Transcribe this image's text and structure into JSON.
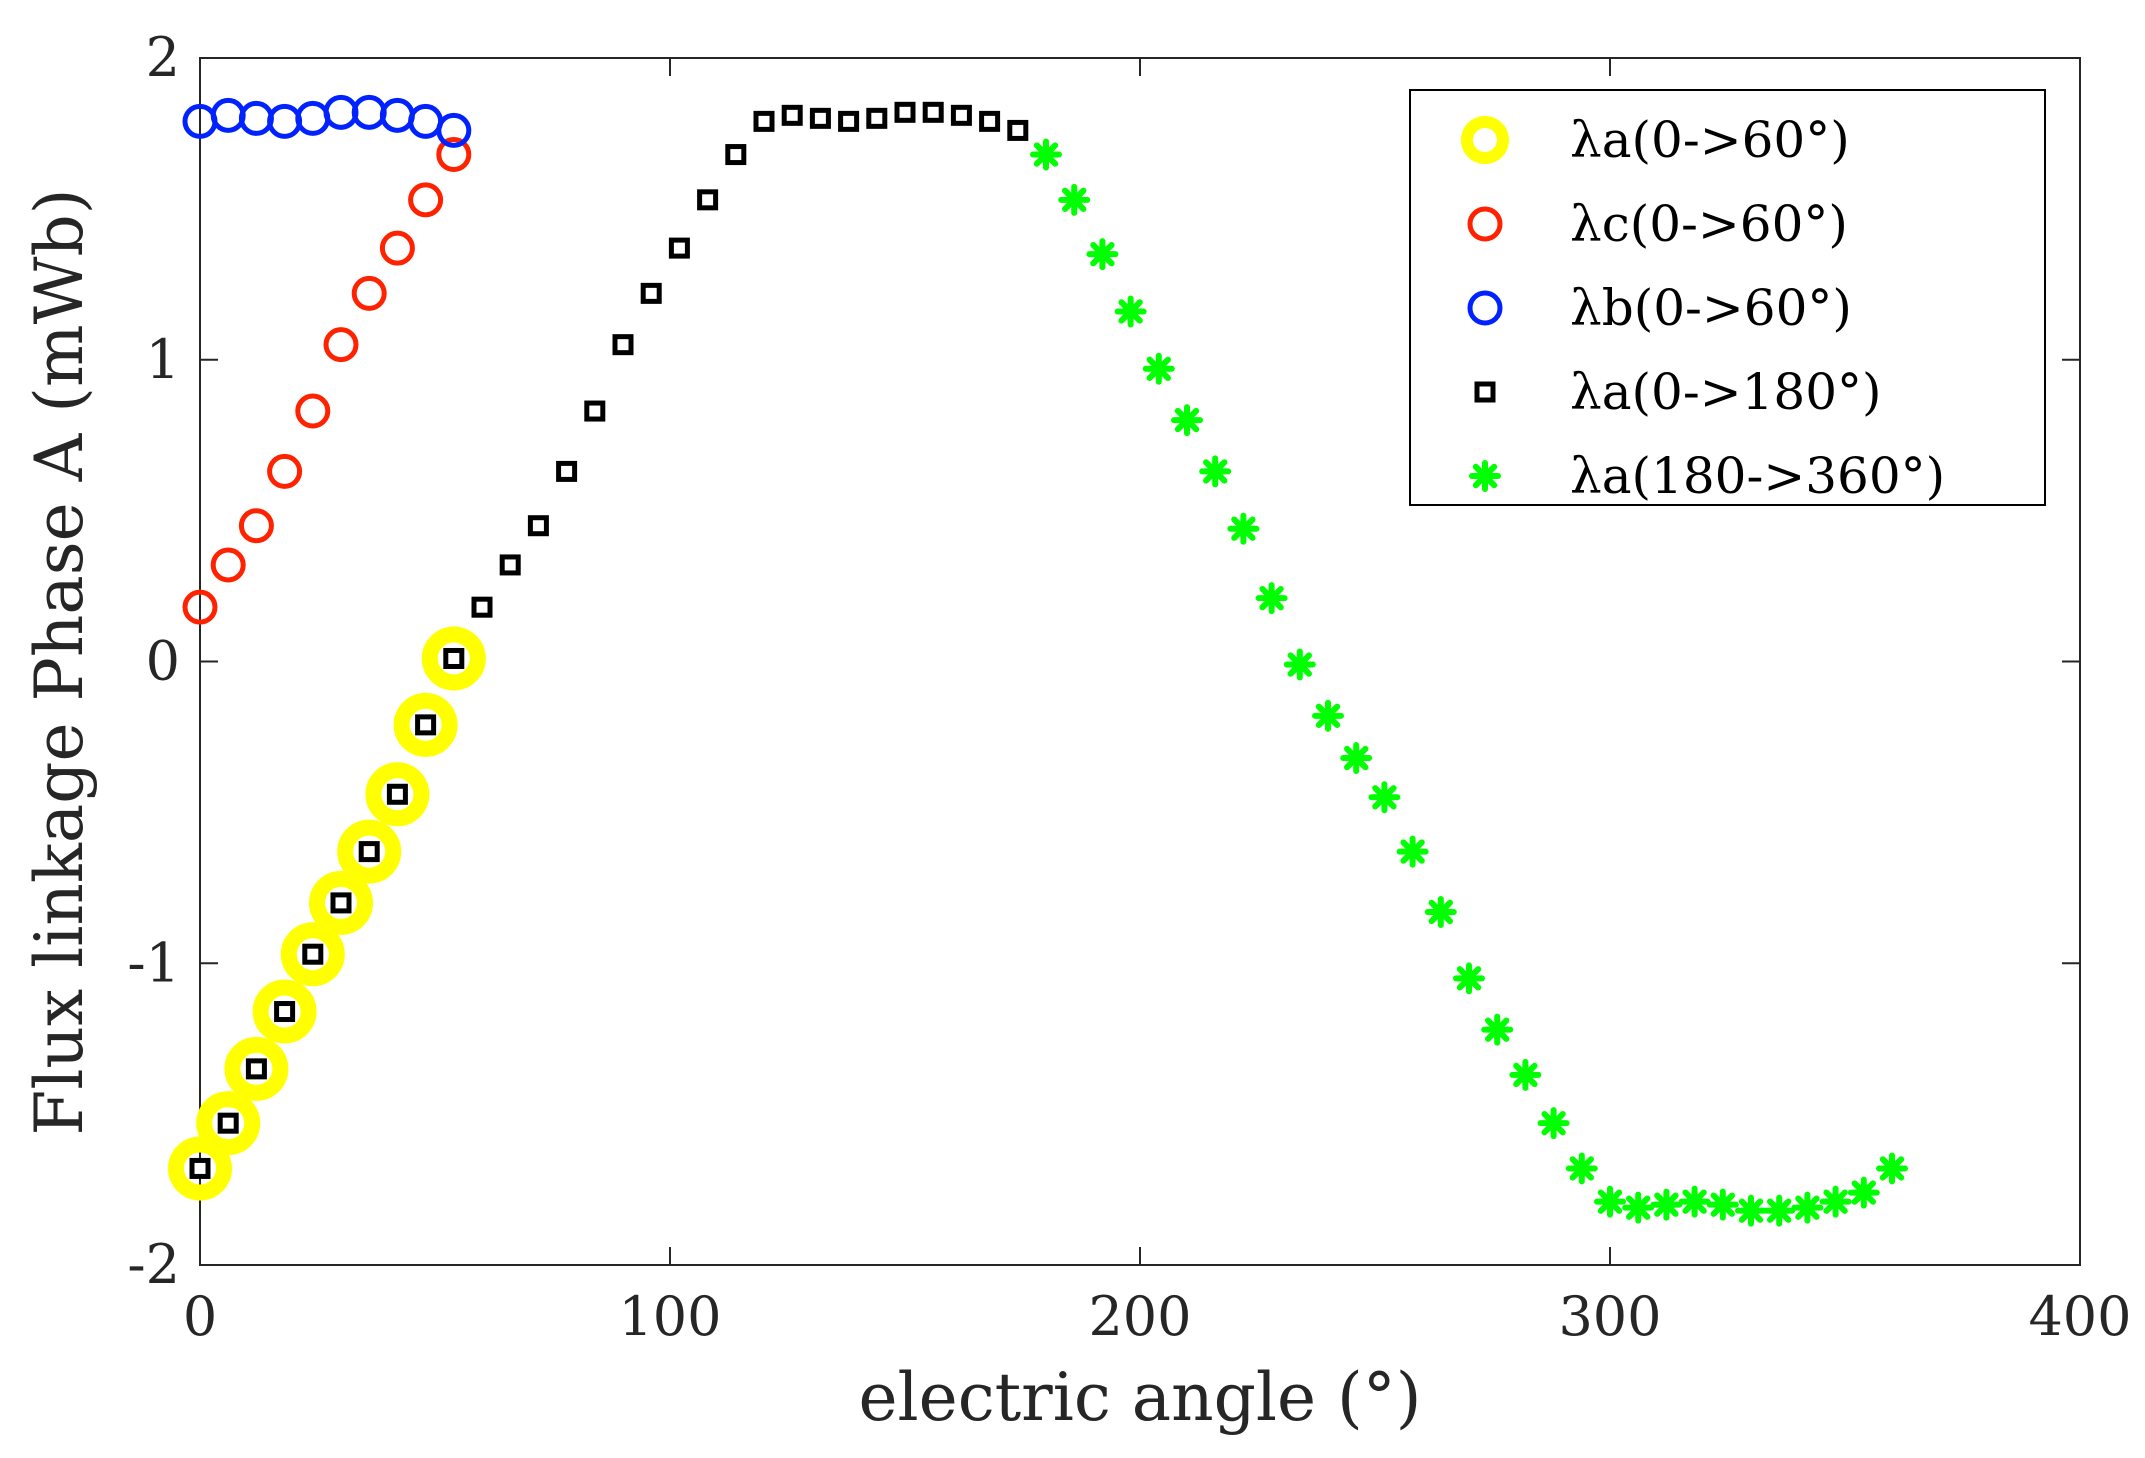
{
  "chart_data": {
    "type": "scatter",
    "title": "",
    "xlabel": "electric angle (°)",
    "ylabel": "Flux linkage Phase A (mWb)",
    "xlim": [
      0,
      400
    ],
    "ylim": [
      -2,
      2
    ],
    "xticks": [
      0,
      100,
      200,
      300,
      400
    ],
    "xtick_labels": [
      "0",
      "100",
      "200",
      "300",
      "400"
    ],
    "yticks": [
      -2,
      -1,
      0,
      1,
      2
    ],
    "ytick_labels": [
      "-2",
      "-1",
      "0",
      "1",
      "2"
    ],
    "grid": false,
    "legend_position": "top-right",
    "series": [
      {
        "name": "λa(0->60°)",
        "marker": "filled-ring",
        "color": "#ffff00",
        "x": [
          0,
          6,
          12,
          18,
          24,
          30,
          36,
          42,
          48,
          54
        ],
        "y": [
          -1.68,
          -1.53,
          -1.35,
          -1.16,
          -0.97,
          -0.8,
          -0.63,
          -0.44,
          -0.21,
          0.01
        ]
      },
      {
        "name": "λc(0->60°)",
        "marker": "circle",
        "color": "#ff2200",
        "x": [
          0,
          6,
          12,
          18,
          24,
          30,
          36,
          42,
          48,
          54
        ],
        "y": [
          0.18,
          0.32,
          0.45,
          0.63,
          0.83,
          1.05,
          1.22,
          1.37,
          1.53,
          1.68
        ]
      },
      {
        "name": "λb(0->60°)",
        "marker": "circle",
        "color": "#0022ff",
        "x": [
          0,
          6,
          12,
          18,
          24,
          30,
          36,
          42,
          48,
          54
        ],
        "y": [
          1.79,
          1.81,
          1.8,
          1.79,
          1.8,
          1.82,
          1.82,
          1.81,
          1.79,
          1.76
        ]
      },
      {
        "name": "λa(0->180°)",
        "marker": "square",
        "color": "#000000",
        "x": [
          0,
          6,
          12,
          18,
          24,
          30,
          36,
          42,
          48,
          54,
          60,
          66,
          72,
          78,
          84,
          90,
          96,
          102,
          108,
          114,
          120,
          126,
          132,
          138,
          144,
          150,
          156,
          162,
          168,
          174
        ],
        "y": [
          -1.68,
          -1.53,
          -1.35,
          -1.16,
          -0.97,
          -0.8,
          -0.63,
          -0.44,
          -0.21,
          0.01,
          0.18,
          0.32,
          0.45,
          0.63,
          0.83,
          1.05,
          1.22,
          1.37,
          1.53,
          1.68,
          1.79,
          1.81,
          1.8,
          1.79,
          1.8,
          1.82,
          1.82,
          1.81,
          1.79,
          1.76
        ]
      },
      {
        "name": "λa(180->360°)",
        "marker": "asterisk",
        "color": "#00ff00",
        "x": [
          180,
          186,
          192,
          198,
          204,
          210,
          216,
          222,
          228,
          234,
          240,
          246,
          252,
          258,
          264,
          270,
          276,
          282,
          288,
          294,
          300,
          306,
          312,
          318,
          324,
          330,
          336,
          342,
          348,
          354,
          360
        ],
        "y": [
          1.68,
          1.53,
          1.35,
          1.16,
          0.97,
          0.8,
          0.63,
          0.44,
          0.21,
          -0.01,
          -0.18,
          -0.32,
          -0.45,
          -0.63,
          -0.83,
          -1.05,
          -1.22,
          -1.37,
          -1.53,
          -1.68,
          -1.79,
          -1.81,
          -1.8,
          -1.79,
          -1.8,
          -1.82,
          -1.82,
          -1.81,
          -1.79,
          -1.76,
          -1.68
        ]
      }
    ]
  }
}
